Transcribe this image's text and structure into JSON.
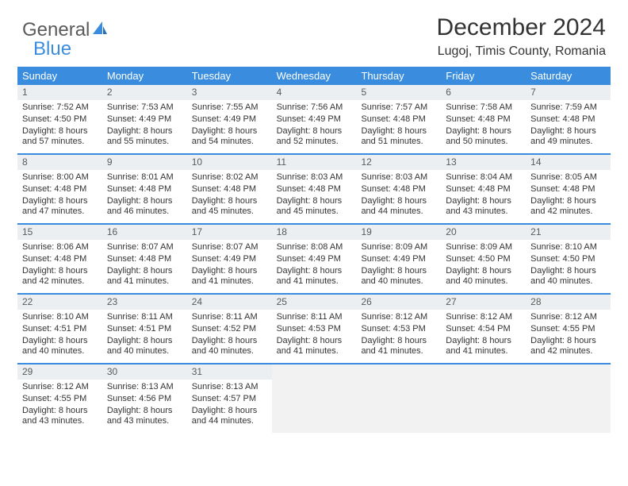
{
  "logo": {
    "text1": "General",
    "text2": "Blue"
  },
  "title": "December 2024",
  "location": "Lugoj, Timis County, Romania",
  "colors": {
    "header_bg": "#3a8dde",
    "header_text": "#ffffff",
    "daynum_bg": "#eceff1",
    "rule": "#3a8dde",
    "text": "#333333",
    "logo_gray": "#5a5a5a",
    "logo_blue": "#3a8dde"
  },
  "day_names": [
    "Sunday",
    "Monday",
    "Tuesday",
    "Wednesday",
    "Thursday",
    "Friday",
    "Saturday"
  ],
  "weeks": [
    [
      {
        "n": "1",
        "sr": "7:52 AM",
        "ss": "4:50 PM",
        "dl": "8 hours and 57 minutes."
      },
      {
        "n": "2",
        "sr": "7:53 AM",
        "ss": "4:49 PM",
        "dl": "8 hours and 55 minutes."
      },
      {
        "n": "3",
        "sr": "7:55 AM",
        "ss": "4:49 PM",
        "dl": "8 hours and 54 minutes."
      },
      {
        "n": "4",
        "sr": "7:56 AM",
        "ss": "4:49 PM",
        "dl": "8 hours and 52 minutes."
      },
      {
        "n": "5",
        "sr": "7:57 AM",
        "ss": "4:48 PM",
        "dl": "8 hours and 51 minutes."
      },
      {
        "n": "6",
        "sr": "7:58 AM",
        "ss": "4:48 PM",
        "dl": "8 hours and 50 minutes."
      },
      {
        "n": "7",
        "sr": "7:59 AM",
        "ss": "4:48 PM",
        "dl": "8 hours and 49 minutes."
      }
    ],
    [
      {
        "n": "8",
        "sr": "8:00 AM",
        "ss": "4:48 PM",
        "dl": "8 hours and 47 minutes."
      },
      {
        "n": "9",
        "sr": "8:01 AM",
        "ss": "4:48 PM",
        "dl": "8 hours and 46 minutes."
      },
      {
        "n": "10",
        "sr": "8:02 AM",
        "ss": "4:48 PM",
        "dl": "8 hours and 45 minutes."
      },
      {
        "n": "11",
        "sr": "8:03 AM",
        "ss": "4:48 PM",
        "dl": "8 hours and 45 minutes."
      },
      {
        "n": "12",
        "sr": "8:03 AM",
        "ss": "4:48 PM",
        "dl": "8 hours and 44 minutes."
      },
      {
        "n": "13",
        "sr": "8:04 AM",
        "ss": "4:48 PM",
        "dl": "8 hours and 43 minutes."
      },
      {
        "n": "14",
        "sr": "8:05 AM",
        "ss": "4:48 PM",
        "dl": "8 hours and 42 minutes."
      }
    ],
    [
      {
        "n": "15",
        "sr": "8:06 AM",
        "ss": "4:48 PM",
        "dl": "8 hours and 42 minutes."
      },
      {
        "n": "16",
        "sr": "8:07 AM",
        "ss": "4:48 PM",
        "dl": "8 hours and 41 minutes."
      },
      {
        "n": "17",
        "sr": "8:07 AM",
        "ss": "4:49 PM",
        "dl": "8 hours and 41 minutes."
      },
      {
        "n": "18",
        "sr": "8:08 AM",
        "ss": "4:49 PM",
        "dl": "8 hours and 41 minutes."
      },
      {
        "n": "19",
        "sr": "8:09 AM",
        "ss": "4:49 PM",
        "dl": "8 hours and 40 minutes."
      },
      {
        "n": "20",
        "sr": "8:09 AM",
        "ss": "4:50 PM",
        "dl": "8 hours and 40 minutes."
      },
      {
        "n": "21",
        "sr": "8:10 AM",
        "ss": "4:50 PM",
        "dl": "8 hours and 40 minutes."
      }
    ],
    [
      {
        "n": "22",
        "sr": "8:10 AM",
        "ss": "4:51 PM",
        "dl": "8 hours and 40 minutes."
      },
      {
        "n": "23",
        "sr": "8:11 AM",
        "ss": "4:51 PM",
        "dl": "8 hours and 40 minutes."
      },
      {
        "n": "24",
        "sr": "8:11 AM",
        "ss": "4:52 PM",
        "dl": "8 hours and 40 minutes."
      },
      {
        "n": "25",
        "sr": "8:11 AM",
        "ss": "4:53 PM",
        "dl": "8 hours and 41 minutes."
      },
      {
        "n": "26",
        "sr": "8:12 AM",
        "ss": "4:53 PM",
        "dl": "8 hours and 41 minutes."
      },
      {
        "n": "27",
        "sr": "8:12 AM",
        "ss": "4:54 PM",
        "dl": "8 hours and 41 minutes."
      },
      {
        "n": "28",
        "sr": "8:12 AM",
        "ss": "4:55 PM",
        "dl": "8 hours and 42 minutes."
      }
    ],
    [
      {
        "n": "29",
        "sr": "8:12 AM",
        "ss": "4:55 PM",
        "dl": "8 hours and 43 minutes."
      },
      {
        "n": "30",
        "sr": "8:13 AM",
        "ss": "4:56 PM",
        "dl": "8 hours and 43 minutes."
      },
      {
        "n": "31",
        "sr": "8:13 AM",
        "ss": "4:57 PM",
        "dl": "8 hours and 44 minutes."
      },
      null,
      null,
      null,
      null
    ]
  ],
  "labels": {
    "sunrise": "Sunrise:",
    "sunset": "Sunset:",
    "daylight": "Daylight:"
  }
}
